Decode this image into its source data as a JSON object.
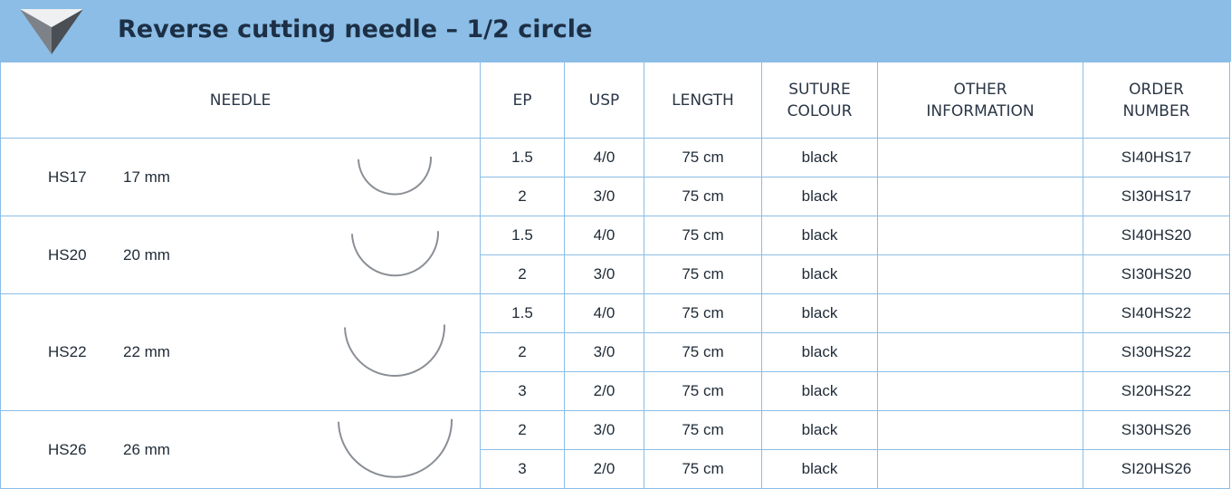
{
  "header": {
    "title": "Reverse cutting needle – 1/2 circle"
  },
  "table": {
    "columns": [
      "NEEDLE",
      "EP",
      "USP",
      "LENGTH",
      "SUTURE COLOUR",
      "OTHER INFORMATION",
      "ORDER NUMBER"
    ],
    "groups": [
      {
        "code": "HS17",
        "size": "17 mm",
        "rows": [
          [
            "1.5",
            "4/0",
            "75 cm",
            "black",
            "SI40HS17"
          ],
          [
            "2",
            "3/0",
            "75 cm",
            "black",
            "SI30HS17"
          ]
        ]
      },
      {
        "code": "HS20",
        "size": "20 mm",
        "rows": [
          [
            "1.5",
            "4/0",
            "75 cm",
            "black",
            "SI40HS20"
          ],
          [
            "2",
            "3/0",
            "75 cm",
            "black",
            "SI30HS20"
          ]
        ]
      },
      {
        "code": "HS22",
        "size": "22 mm",
        "rows": [
          [
            "1.5",
            "4/0",
            "75 cm",
            "black",
            "SI40HS22"
          ],
          [
            "2",
            "3/0",
            "75 cm",
            "black",
            "SI30HS22"
          ],
          [
            "3",
            "2/0",
            "75 cm",
            "black",
            "SI20HS22"
          ]
        ]
      },
      {
        "code": "HS26",
        "size": "26 mm",
        "rows": [
          [
            "2",
            "3/0",
            "75 cm",
            "black",
            "SI30HS26"
          ],
          [
            "3",
            "2/0",
            "75 cm",
            "black",
            "SI20HS26"
          ]
        ]
      }
    ]
  }
}
